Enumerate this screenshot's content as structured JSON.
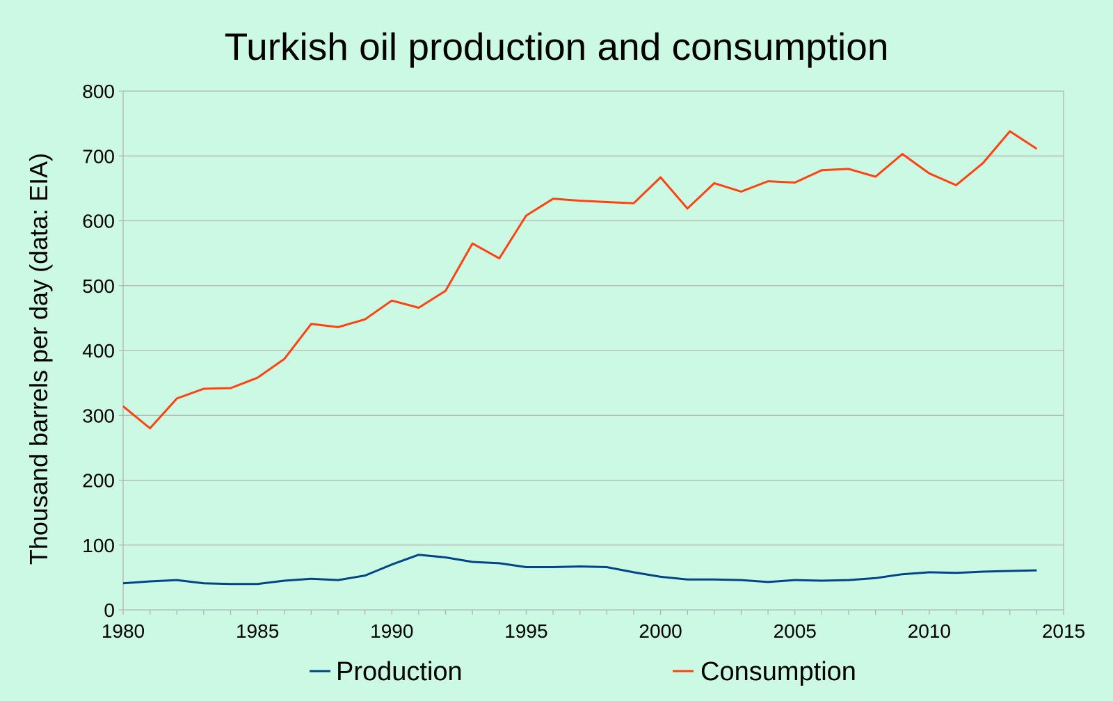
{
  "chart_data": {
    "type": "line",
    "title": "Turkish oil production and consumption",
    "xlabel": "",
    "ylabel": "Thousand barrels per day (data: EIA)",
    "xlim": [
      1980,
      2015
    ],
    "ylim": [
      0,
      800
    ],
    "x_ticks": [
      1980,
      1985,
      1990,
      1995,
      2000,
      2005,
      2010,
      2015
    ],
    "y_ticks": [
      0,
      100,
      200,
      300,
      400,
      500,
      600,
      700,
      800
    ],
    "grid": true,
    "legend_position": "bottom",
    "x": [
      1980,
      1981,
      1982,
      1983,
      1984,
      1985,
      1986,
      1987,
      1988,
      1989,
      1990,
      1991,
      1992,
      1993,
      1994,
      1995,
      1996,
      1997,
      1998,
      1999,
      2000,
      2001,
      2002,
      2003,
      2004,
      2005,
      2006,
      2007,
      2008,
      2009,
      2010,
      2011,
      2012,
      2013,
      2014
    ],
    "series": [
      {
        "name": "Production",
        "color": "#004586",
        "values": [
          41,
          44,
          46,
          41,
          40,
          40,
          45,
          48,
          46,
          53,
          70,
          85,
          81,
          74,
          72,
          66,
          66,
          67,
          66,
          58,
          51,
          47,
          47,
          46,
          43,
          46,
          45,
          46,
          49,
          55,
          58,
          57,
          59,
          60,
          61
        ]
      },
      {
        "name": "Consumption",
        "color": "#ff420e",
        "values": [
          314,
          280,
          326,
          341,
          342,
          358,
          387,
          441,
          436,
          448,
          477,
          466,
          492,
          565,
          542,
          608,
          634,
          631,
          629,
          627,
          667,
          619,
          658,
          645,
          661,
          659,
          678,
          680,
          668,
          703,
          673,
          655,
          689,
          738,
          711
        ]
      }
    ]
  },
  "colors": {
    "background": "#ccf9e3",
    "grid": "#b3b3b3",
    "axis": "#b3b3b3"
  }
}
